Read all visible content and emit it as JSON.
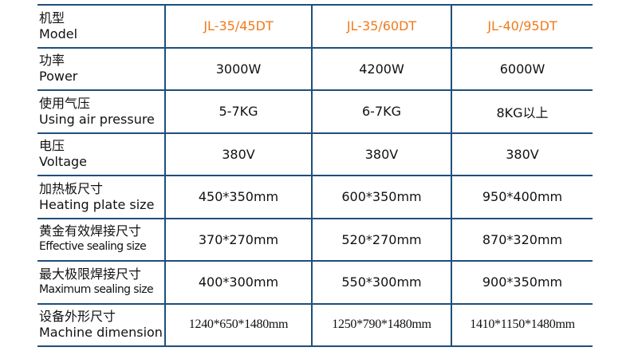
{
  "table": {
    "header": {
      "zh": "机型",
      "en": "Model",
      "models": [
        "JL-35/45DT",
        "JL-35/60DT",
        "JL-40/95DT"
      ]
    },
    "rows": [
      {
        "zh": "功率",
        "en": "Power",
        "values": [
          "3000W",
          "4200W",
          "6000W"
        ]
      },
      {
        "zh": "使用气压",
        "en": "Using air pressure",
        "values": [
          "5-7KG",
          "6-7KG",
          "8KG以上"
        ]
      },
      {
        "zh": "电压",
        "en": "Voltage",
        "values": [
          "380V",
          "380V",
          "380V"
        ]
      },
      {
        "zh": "加热板尺寸",
        "en": "Heating plate size",
        "values": [
          "450*350mm",
          "600*350mm",
          "950*400mm"
        ]
      },
      {
        "zh": "黄金有效焊接尺寸",
        "en": "Effective sealing size",
        "values": [
          "370*270mm",
          "520*270mm",
          "870*320mm"
        ]
      },
      {
        "zh": "最大极限焊接尺寸",
        "en": "Maximum sealing size",
        "values": [
          "400*300mm",
          "550*300mm",
          "900*350mm"
        ]
      },
      {
        "zh": "设备外形尺寸",
        "en": "Machine dimension",
        "values": [
          "1240*650*1480mm",
          "1250*790*1480mm",
          "1410*1150*1480mm"
        ]
      }
    ]
  },
  "colors": {
    "border": "#1e4f7a",
    "model_text": "#f07a1a"
  }
}
